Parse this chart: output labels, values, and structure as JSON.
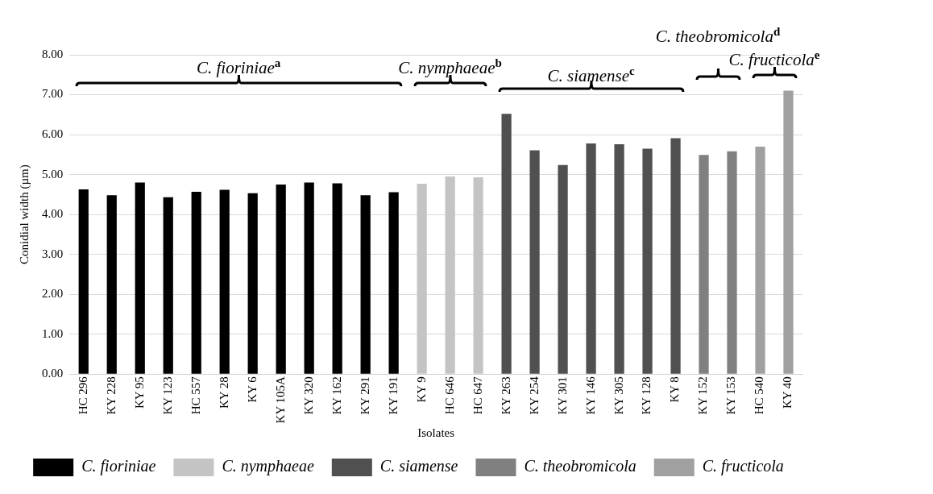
{
  "chart_data": {
    "type": "bar",
    "xlabel": "Isolates",
    "ylabel": "Conidial width (µm)",
    "categories": [
      "HC 296",
      "KY 228",
      "KY 95",
      "KY 123",
      "HC 557",
      "KY 28",
      "KY 6",
      "KY 105A",
      "KY 320",
      "KY 162",
      "KY 291",
      "KY 191",
      "KY 9",
      "HC 646",
      "HC 647",
      "KY 263",
      "KY 254",
      "KY 301",
      "KY 146",
      "KY 305",
      "KY 128",
      "KY 8",
      "KY 152",
      "KY 153",
      "HC 540",
      "KY 40"
    ],
    "series": [
      {
        "name": "C. fioriniae",
        "color": "#000000",
        "values": [
          4.63,
          4.48,
          4.8,
          4.43,
          4.57,
          4.62,
          4.53,
          4.75,
          4.8,
          4.78,
          4.48,
          4.56,
          null,
          null,
          null,
          null,
          null,
          null,
          null,
          null,
          null,
          null,
          null,
          null,
          null,
          null
        ]
      },
      {
        "name": "C. nymphaeae",
        "color": "#c4c4c4",
        "values": [
          null,
          null,
          null,
          null,
          null,
          null,
          null,
          null,
          null,
          null,
          null,
          null,
          4.77,
          4.95,
          4.93,
          null,
          null,
          null,
          null,
          null,
          null,
          null,
          null,
          null,
          null,
          null
        ]
      },
      {
        "name": "C. siamense",
        "color": "#505050",
        "values": [
          null,
          null,
          null,
          null,
          null,
          null,
          null,
          null,
          null,
          null,
          null,
          null,
          null,
          null,
          null,
          6.52,
          5.61,
          5.24,
          5.78,
          5.76,
          5.65,
          5.91,
          null,
          null,
          null,
          null
        ]
      },
      {
        "name": "C. theobromicola",
        "color": "#808080",
        "values": [
          null,
          null,
          null,
          null,
          null,
          null,
          null,
          null,
          null,
          null,
          null,
          null,
          null,
          null,
          null,
          null,
          null,
          null,
          null,
          null,
          null,
          null,
          5.49,
          5.58,
          null,
          null
        ]
      },
      {
        "name": "C. fructicola",
        "color": "#a0a0a0",
        "values": [
          null,
          null,
          null,
          null,
          null,
          null,
          null,
          null,
          null,
          null,
          null,
          null,
          null,
          null,
          null,
          null,
          null,
          null,
          null,
          null,
          null,
          null,
          null,
          null,
          5.7,
          7.1
        ]
      }
    ],
    "annotations": [
      "C. fioriniae$^{a}$",
      "C. nymphaeae$^{b}$",
      "C. siamense$^{c}$",
      "C. theobromicola$^{d}$",
      "C. fructicola$^{e}$"
    ],
    "ylim": [
      0,
      8
    ],
    "yticks": [
      {
        "value": 0,
        "label": "0.00"
      },
      {
        "value": 1,
        "label": "1.00"
      },
      {
        "value": 2,
        "label": "2.00"
      },
      {
        "value": 3,
        "label": "3.00"
      },
      {
        "value": 4,
        "label": "4.00"
      },
      {
        "value": 5,
        "label": "5.00"
      },
      {
        "value": 6,
        "label": "6.00"
      },
      {
        "value": 7,
        "label": "7.00"
      },
      {
        "value": 8,
        "label": "8.00"
      }
    ],
    "grid": "y",
    "legend": "bottom"
  }
}
